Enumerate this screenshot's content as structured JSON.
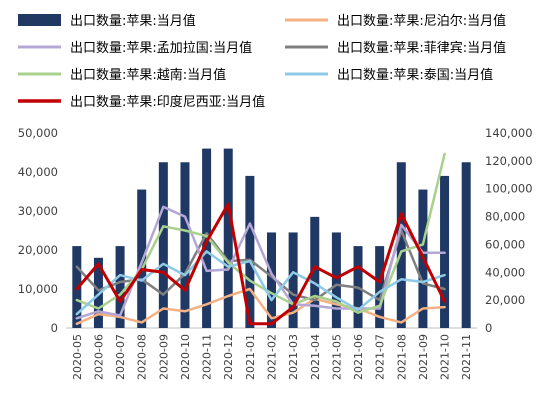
{
  "chart_data": {
    "type": "bar",
    "categories": [
      "2020-05",
      "2020-06",
      "2020-07",
      "2020-08",
      "2020-09",
      "2020-10",
      "2020-11",
      "2020-12",
      "2021-01",
      "2021-02",
      "2021-03",
      "2021-04",
      "2021-05",
      "2021-06",
      "2021-07",
      "2021-08",
      "2021-09",
      "2021-10",
      "2021-11"
    ],
    "left_axis": {
      "ylim": [
        0,
        50000
      ],
      "ticks": [
        "0",
        "10,000",
        "20,000",
        "30,000",
        "40,000",
        "50,000"
      ]
    },
    "right_axis": {
      "ylim": [
        0,
        140000
      ],
      "ticks": [
        "0",
        "20,000",
        "40,000",
        "60,000",
        "80,000",
        "100,000",
        "120,000",
        "140,000"
      ]
    },
    "grid": false,
    "legend_position": "top",
    "series": [
      {
        "name": "出口数量:苹果:当月值",
        "type": "bar",
        "axis": "left",
        "color": "#1f3864",
        "values": [
          21000,
          18000,
          21000,
          35500,
          42500,
          42500,
          46000,
          46000,
          39000,
          24500,
          24500,
          28500,
          24500,
          21000,
          21000,
          42500,
          35500,
          39000,
          42500
        ]
      },
      {
        "name": "出口数量:苹果:尼泊尔:当月值",
        "type": "line",
        "axis": "right",
        "color": "#f4b183",
        "values": [
          3000,
          10000,
          8000,
          4000,
          14000,
          12000,
          17000,
          23000,
          28000,
          7000,
          11000,
          21000,
          17000,
          14000,
          8000,
          4000,
          14000,
          15000,
          null
        ]
      },
      {
        "name": "出口数量:苹果:菲律宾:当月值",
        "type": "line",
        "axis": "right",
        "color": "#7f7f7f",
        "values": [
          44000,
          27000,
          33000,
          35000,
          24000,
          39000,
          68000,
          48000,
          49000,
          37000,
          24000,
          20000,
          31000,
          29000,
          20000,
          70000,
          32000,
          28000,
          null
        ]
      },
      {
        "name": "出口数量:苹果:孟加拉国:当月值",
        "type": "line",
        "axis": "right",
        "color": "#b4a7d6",
        "values": [
          7000,
          12000,
          9000,
          47000,
          87000,
          80000,
          41000,
          42000,
          75000,
          39000,
          17000,
          16000,
          14000,
          14000,
          14000,
          74000,
          54000,
          54000,
          null
        ]
      },
      {
        "name": "出口数量:苹果:越南:当月值",
        "type": "line",
        "axis": "right",
        "color": "#a9d18e",
        "values": [
          20000,
          14000,
          24000,
          42000,
          73000,
          70000,
          66000,
          47000,
          34000,
          25000,
          17000,
          23000,
          19000,
          11000,
          16000,
          55000,
          60000,
          125000,
          null
        ]
      },
      {
        "name": "出口数量:苹果:泰国:当月值",
        "type": "line",
        "axis": "right",
        "color": "#8ecae6",
        "values": [
          10000,
          24000,
          38000,
          34000,
          46000,
          38000,
          55000,
          44000,
          48000,
          20000,
          40000,
          32000,
          22000,
          13000,
          26000,
          35000,
          33000,
          38000,
          null
        ]
      },
      {
        "name": "出口数量:苹果:印度尼西亚:当月值",
        "type": "line",
        "axis": "right",
        "color": "#c00000",
        "values": [
          28000,
          46000,
          19000,
          42000,
          40000,
          27000,
          62000,
          89000,
          3000,
          3000,
          15000,
          44000,
          36000,
          44000,
          33000,
          82000,
          51000,
          19000,
          null
        ]
      }
    ]
  }
}
